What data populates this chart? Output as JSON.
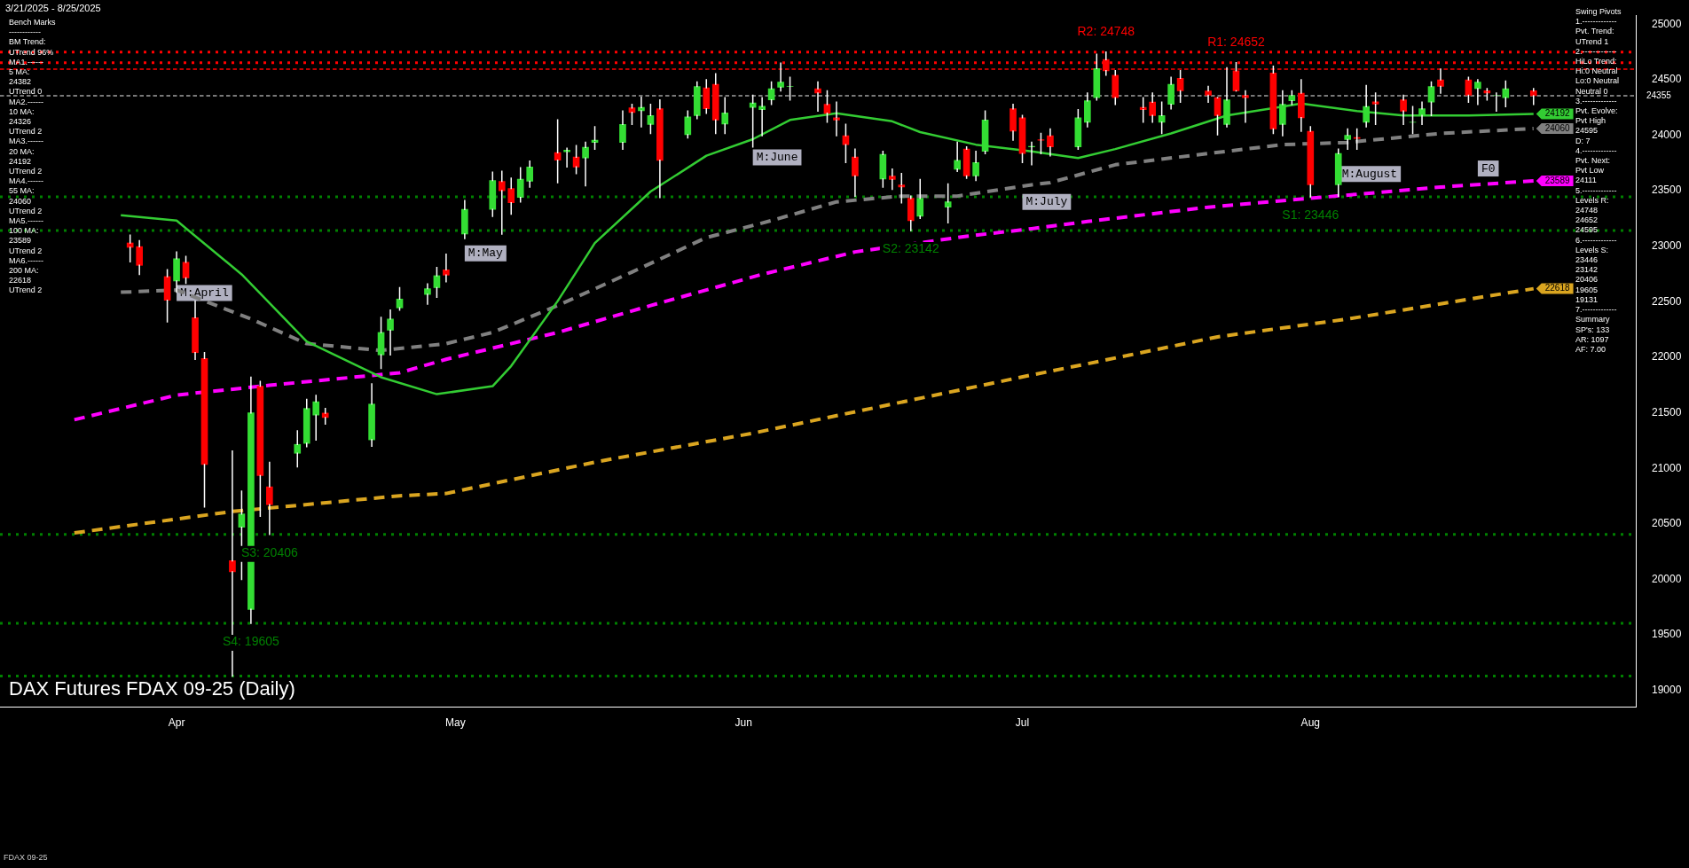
{
  "chart_data": {
    "type": "candlestick",
    "title": "DAX Futures FDAX 09-25 (Daily)",
    "annotations": [
      "3/21/2025 - 8/25/2025",
      "Bench Marks\n------------\nBM Trend:\nUTrend 96%\nMA1.------\n5 MA:\n24382\nUTrend 0\nMA2.------\n10 MA:\n24326\nUTrend 2\nMA3.------\n20 MA:\n24192\nUTrend 2\nMA4.------\n55 MA:\n24060\nUTrend 2\nMA5.------\n100 MA:\n23589\nUTrend 2\nMA6.------\n200 MA:\n22618\nUTrend 2",
      "Swing Pivots\n1.-------------\nPvt. Trend:\nUTrend 1\n2.-------------\nHiLo Trend:\nHi:0 Neutral\nLo:0 Neutral\nNeutral 0\n3.-------------\nPvt. Evolve:\nPvt High\n24595\nD: 7\n4.-------------\nPvt. Next:\nPvt Low\n24111\n5.-------------\nLevels R:\n24748\n24652\n24595\n6.-------------\nLevels S:\n23446\n23142\n20406\n19605\n19131\n7.-------------\nSummary\nSP's: 133\nAR: 1097\nAF: 7.00",
      "FDAX 09-25",
      {
        "text": "R2: 24748",
        "x": "2025-07-10",
        "y": 24748
      },
      {
        "text": "R1: 24652",
        "x": "2025-07-24",
        "y": 24652
      },
      {
        "text": "S1: 23446",
        "x": "2025-08-01",
        "y": 23446
      },
      {
        "text": "S2: 23142",
        "x": "2025-06-19",
        "y": 23142
      },
      {
        "text": "S3: 20406",
        "x": "2025-04-11",
        "y": 20406
      },
      {
        "text": "S4: 19605",
        "x": "2025-04-09",
        "y": 19605
      },
      "M:April",
      "M:May",
      "M:June",
      "M:July",
      "M:August",
      "F0",
      {
        "text": "24192",
        "x": "2025-08-25",
        "y": 24192
      },
      {
        "text": "24060",
        "x": "2025-08-25",
        "y": 24060
      },
      {
        "text": "23589",
        "x": "2025-08-25",
        "y": 23589
      },
      {
        "text": "22618",
        "x": "2025-08-25",
        "y": 22618
      }
    ],
    "xlim": [
      "2025-03-13",
      "2025-09-05"
    ],
    "xticks": [
      {
        "value": "2025-04-01",
        "label": "Apr"
      },
      {
        "value": "2025-05-01",
        "label": "May"
      },
      {
        "value": "2025-06-01",
        "label": "Jun"
      },
      {
        "value": "2025-07-01",
        "label": "Jul"
      },
      {
        "value": "2025-08-01",
        "label": "Aug"
      }
    ],
    "ylim": [
      18850,
      25080
    ],
    "yticks": [
      19000,
      19500,
      20000,
      20500,
      21000,
      21500,
      22000,
      22500,
      23000,
      23500,
      24000,
      24500,
      25000
    ],
    "grid": false,
    "legend": false,
    "ref_lines": [
      {
        "axis": "y",
        "value": 24748,
        "color": "#ff0000",
        "line_style": "dotted"
      },
      {
        "axis": "y",
        "value": 24652,
        "color": "#ff0000",
        "line_style": "dotted"
      },
      {
        "axis": "y",
        "value": 24595,
        "color": "#ff0000",
        "line_style": "dashed"
      },
      {
        "axis": "y",
        "value": 24355,
        "label": "24355",
        "color": "#a0a0a0",
        "line_style": "dashed"
      },
      {
        "axis": "y",
        "value": 23446,
        "color": "#008000",
        "line_style": "dotted"
      },
      {
        "axis": "y",
        "value": 23142,
        "color": "#008000",
        "line_style": "dotted"
      },
      {
        "axis": "y",
        "value": 20406,
        "color": "#008000",
        "line_style": "dotted"
      },
      {
        "axis": "y",
        "value": 19605,
        "color": "#008000",
        "line_style": "dotted"
      },
      {
        "axis": "y",
        "value": 19131,
        "color": "#008000",
        "line_style": "dotted"
      }
    ],
    "series": [
      {
        "type": "line",
        "color": "#33cc33",
        "line_style": "solid",
        "marker": "none",
        "x": [
          "2025-03-26",
          "2025-04-01",
          "2025-04-08",
          "2025-04-15",
          "2025-04-23",
          "2025-04-29",
          "2025-05-05",
          "2025-05-07",
          "2025-05-12",
          "2025-05-16",
          "2025-05-22",
          "2025-05-28",
          "2025-06-02",
          "2025-06-06",
          "2025-06-11",
          "2025-06-17",
          "2025-06-20",
          "2025-06-26",
          "2025-07-02",
          "2025-07-07",
          "2025-07-11",
          "2025-07-17",
          "2025-07-23",
          "2025-07-29",
          "2025-07-31",
          "2025-08-06",
          "2025-08-11",
          "2025-08-18",
          "2025-08-25"
        ],
        "values": [
          23279,
          23231,
          22747,
          22143,
          21821,
          21668,
          21740,
          21922,
          22506,
          23029,
          23493,
          23815,
          23964,
          24137,
          24197,
          24125,
          24028,
          23915,
          23855,
          23795,
          23875,
          24016,
          24177,
          24258,
          24286,
          24218,
          24177,
          24177,
          24192
        ]
      },
      {
        "type": "line",
        "color": "#808080",
        "line_style": "dashed",
        "marker": "none",
        "x": [
          "2025-03-26",
          "2025-04-01",
          "2025-04-09",
          "2025-04-15",
          "2025-04-23",
          "2025-04-30",
          "2025-05-05",
          "2025-05-12",
          "2025-05-20",
          "2025-05-28",
          "2025-06-04",
          "2025-06-11",
          "2025-06-18",
          "2025-06-24",
          "2025-07-02",
          "2025-07-04",
          "2025-07-11",
          "2025-07-21",
          "2025-07-29",
          "2025-08-05",
          "2025-08-15",
          "2025-08-25"
        ],
        "values": [
          22586,
          22606,
          22345,
          22123,
          22062,
          22123,
          22224,
          22466,
          22768,
          23078,
          23231,
          23400,
          23452,
          23452,
          23553,
          23573,
          23734,
          23835,
          23915,
          23935,
          24016,
          24060
        ]
      },
      {
        "type": "line",
        "color": "#ff00ff",
        "line_style": "dashed",
        "marker": "none",
        "x": [
          "2025-03-21",
          "2025-04-01",
          "2025-04-11",
          "2025-04-25",
          "2025-04-30",
          "2025-05-12",
          "2025-05-22",
          "2025-06-03",
          "2025-06-13",
          "2025-06-25",
          "2025-07-02",
          "2025-07-08",
          "2025-07-21",
          "2025-08-01",
          "2025-08-15",
          "2025-08-25"
        ],
        "values": [
          21438,
          21660,
          21748,
          21861,
          21982,
          22224,
          22466,
          22747,
          22949,
          23090,
          23158,
          23223,
          23352,
          23432,
          23533,
          23589
        ]
      },
      {
        "type": "line",
        "color": "#daa520",
        "line_style": "dashed",
        "marker": "none",
        "x": [
          "2025-03-21",
          "2025-04-07",
          "2025-04-25",
          "2025-04-30",
          "2025-05-16",
          "2025-06-02",
          "2025-06-17",
          "2025-07-02",
          "2025-07-08",
          "2025-07-22",
          "2025-08-05",
          "2025-08-25"
        ],
        "values": [
          20419,
          20612,
          20753,
          20774,
          21056,
          21317,
          21579,
          21841,
          21942,
          22184,
          22345,
          22618
        ]
      },
      {
        "x": [
          "2025-03-27",
          "2025-03-28",
          "2025-03-31",
          "2025-04-01",
          "2025-04-02",
          "2025-04-03",
          "2025-04-04",
          "2025-04-07",
          "2025-04-08",
          "2025-04-09",
          "2025-04-10",
          "2025-04-11",
          "2025-04-14",
          "2025-04-15",
          "2025-04-16",
          "2025-04-17",
          "2025-04-22",
          "2025-04-23",
          "2025-04-24",
          "2025-04-25",
          "2025-04-28",
          "2025-04-29",
          "2025-04-30",
          "2025-05-02",
          "2025-05-05",
          "2025-05-06",
          "2025-05-07",
          "2025-05-08",
          "2025-05-09",
          "2025-05-12",
          "2025-05-13",
          "2025-05-14",
          "2025-05-15",
          "2025-05-16",
          "2025-05-19",
          "2025-05-20",
          "2025-05-21",
          "2025-05-22",
          "2025-05-23",
          "2025-05-26",
          "2025-05-27",
          "2025-05-28",
          "2025-05-29",
          "2025-05-30",
          "2025-06-02",
          "2025-06-03",
          "2025-06-04",
          "2025-06-05",
          "2025-06-06",
          "2025-06-09",
          "2025-06-10",
          "2025-06-11",
          "2025-06-12",
          "2025-06-13",
          "2025-06-16",
          "2025-06-17",
          "2025-06-18",
          "2025-06-19",
          "2025-06-20",
          "2025-06-23",
          "2025-06-24",
          "2025-06-25",
          "2025-06-26",
          "2025-06-27",
          "2025-06-30",
          "2025-07-01",
          "2025-07-02",
          "2025-07-03",
          "2025-07-04",
          "2025-07-07",
          "2025-07-08",
          "2025-07-09",
          "2025-07-10",
          "2025-07-11",
          "2025-07-14",
          "2025-07-15",
          "2025-07-16",
          "2025-07-17",
          "2025-07-18",
          "2025-07-21",
          "2025-07-22",
          "2025-07-23",
          "2025-07-24",
          "2025-07-25",
          "2025-07-28",
          "2025-07-29",
          "2025-07-30",
          "2025-07-31",
          "2025-08-01",
          "2025-08-04",
          "2025-08-05",
          "2025-08-06",
          "2025-08-07",
          "2025-08-08",
          "2025-08-11",
          "2025-08-12",
          "2025-08-13",
          "2025-08-14",
          "2025-08-15",
          "2025-08-18",
          "2025-08-19",
          "2025-08-20",
          "2025-08-21",
          "2025-08-22",
          "2025-08-25"
        ],
        "ohlc": [
          [
            23030,
            23100,
            22860,
            22990
          ],
          [
            22997,
            23050,
            22747,
            22828
          ],
          [
            22727,
            22788,
            22320,
            22514
          ],
          [
            22687,
            22949,
            22586,
            22888
          ],
          [
            22856,
            22908,
            22667,
            22715
          ],
          [
            22357,
            22506,
            21982,
            22042
          ],
          [
            21990,
            22043,
            20653,
            21035
          ],
          [
            20169,
            21156,
            19131,
            20069
          ],
          [
            20470,
            20794,
            20000,
            20590
          ],
          [
            19730,
            21820,
            19605,
            21500
          ],
          [
            21740,
            21783,
            20570,
            20935
          ],
          [
            20834,
            21055,
            20406,
            20673
          ],
          [
            21136,
            21338,
            21015,
            21216
          ],
          [
            21225,
            21620,
            21196,
            21540
          ],
          [
            21480,
            21657,
            21256,
            21600
          ],
          [
            21498,
            21540,
            21400,
            21458
          ],
          [
            21257,
            21760,
            21200,
            21579
          ],
          [
            22022,
            22360,
            21900,
            22224
          ],
          [
            22244,
            22425,
            22022,
            22345
          ],
          [
            22445,
            22626,
            22425,
            22525
          ],
          [
            22566,
            22660,
            22480,
            22618
          ],
          [
            22627,
            22808,
            22540,
            22735
          ],
          [
            22788,
            22929,
            22680,
            22740
          ],
          [
            23110,
            23412,
            23070,
            23332
          ],
          [
            23332,
            23666,
            23270,
            23593
          ],
          [
            23585,
            23674,
            23110,
            23500
          ],
          [
            23521,
            23613,
            23290,
            23392
          ],
          [
            23440,
            23706,
            23400,
            23605
          ],
          [
            23585,
            23767,
            23533,
            23714
          ],
          [
            23843,
            24137,
            23573,
            23775
          ],
          [
            23850,
            23883,
            23714,
            23866
          ],
          [
            23803,
            23907,
            23654,
            23714
          ],
          [
            23794,
            23936,
            23545,
            23891
          ],
          [
            23935,
            24076,
            23875,
            23955
          ],
          [
            23935,
            24218,
            23875,
            24097
          ],
          [
            24246,
            24278,
            24097,
            24205
          ],
          [
            24220,
            24342,
            24076,
            24250
          ],
          [
            24097,
            24278,
            24016,
            24177
          ],
          [
            24238,
            24318,
            23440,
            23774
          ],
          [
            24004,
            24218,
            23976,
            24165
          ],
          [
            24177,
            24479,
            24149,
            24439
          ],
          [
            24427,
            24499,
            24197,
            24238
          ],
          [
            24459,
            24552,
            24016,
            24137
          ],
          [
            24100,
            24338,
            24016,
            24200
          ],
          [
            24250,
            24359,
            23895,
            24290
          ],
          [
            24230,
            24338,
            23996,
            24260
          ],
          [
            24318,
            24479,
            24278,
            24419
          ],
          [
            24431,
            24648,
            24399,
            24479
          ],
          [
            24440,
            24520,
            24318,
            24440
          ],
          [
            24419,
            24479,
            24218,
            24379
          ],
          [
            24278,
            24399,
            24117,
            24197
          ],
          [
            24157,
            24298,
            23996,
            24137
          ],
          [
            23996,
            24097,
            23754,
            23915
          ],
          [
            23803,
            23875,
            23452,
            23633
          ],
          [
            23605,
            23855,
            23533,
            23827
          ],
          [
            23633,
            23694,
            23513,
            23601
          ],
          [
            23553,
            23654,
            23392,
            23533
          ],
          [
            23432,
            23452,
            23142,
            23231
          ],
          [
            23271,
            23601,
            23251,
            23432
          ],
          [
            23352,
            23561,
            23211,
            23400
          ],
          [
            23694,
            23936,
            23674,
            23774
          ],
          [
            23875,
            23895,
            23613,
            23633
          ],
          [
            23633,
            23855,
            23593,
            23754
          ],
          [
            23855,
            24218,
            23835,
            24137
          ],
          [
            24238,
            24278,
            23955,
            24036
          ],
          [
            24157,
            24177,
            23754,
            23835
          ],
          [
            23895,
            23936,
            23734,
            23900
          ],
          [
            23960,
            24016,
            23835,
            23955
          ],
          [
            23996,
            24056,
            23815,
            23895
          ],
          [
            23895,
            24230,
            23875,
            24157
          ],
          [
            24117,
            24379,
            24076,
            24310
          ],
          [
            24338,
            24729,
            24318,
            24600
          ],
          [
            24681,
            24748,
            24540,
            24580
          ],
          [
            24540,
            24580,
            24278,
            24338
          ],
          [
            24250,
            24338,
            24117,
            24230
          ],
          [
            24298,
            24379,
            24117,
            24177
          ],
          [
            24117,
            24298,
            24016,
            24177
          ],
          [
            24278,
            24520,
            24238,
            24459
          ],
          [
            24512,
            24580,
            24298,
            24399
          ],
          [
            24399,
            24439,
            24298,
            24359
          ],
          [
            24338,
            24338,
            24004,
            24177
          ],
          [
            24097,
            24607,
            24076,
            24318
          ],
          [
            24580,
            24652,
            24399,
            24399
          ],
          [
            24359,
            24399,
            24117,
            24338
          ],
          [
            24560,
            24620,
            24016,
            24056
          ],
          [
            24097,
            24399,
            23996,
            24278
          ],
          [
            24310,
            24399,
            24278,
            24359
          ],
          [
            24379,
            24499,
            24036,
            24157
          ],
          [
            24036,
            24076,
            23446,
            23553
          ],
          [
            23553,
            23875,
            23452,
            23835
          ],
          [
            23960,
            24056,
            23875,
            24000
          ],
          [
            23980,
            24056,
            23875,
            23970
          ],
          [
            24117,
            24447,
            24076,
            24258
          ],
          [
            24300,
            24379,
            24097,
            24280
          ],
          [
            24318,
            24359,
            24097,
            24217
          ],
          [
            24117,
            24258,
            24016,
            24117
          ],
          [
            24177,
            24298,
            24097,
            24238
          ],
          [
            24298,
            24479,
            24177,
            24439
          ],
          [
            24499,
            24595,
            24379,
            24439
          ],
          [
            24499,
            24520,
            24298,
            24359
          ],
          [
            24419,
            24499,
            24278,
            24479
          ],
          [
            24400,
            24419,
            24318,
            24380
          ],
          [
            24359,
            24379,
            24218,
            24359
          ],
          [
            24338,
            24487,
            24258,
            24419
          ],
          [
            24400,
            24419,
            24278,
            24355
          ]
        ]
      }
    ]
  }
}
